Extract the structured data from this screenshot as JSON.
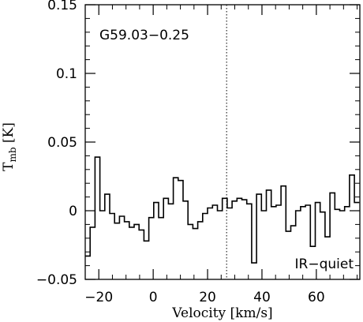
{
  "chart_data": {
    "type": "line",
    "style": "step histogram",
    "title": "",
    "annotations": {
      "source": "G59.03−0.25",
      "classification": "IR−quiet"
    },
    "xlabel": "Velocity [km/s]",
    "ylabel": {
      "main": "T",
      "subscript": "mb",
      "unit": " [K]"
    },
    "xlim": [
      -25,
      76
    ],
    "ylim": [
      -0.05,
      0.15
    ],
    "x_ticks": [
      -20,
      0,
      20,
      40,
      60
    ],
    "x_tick_labels": [
      "−20",
      "0",
      "20",
      "40",
      "60"
    ],
    "y_ticks": [
      -0.05,
      0,
      0.05,
      0.1,
      0.15
    ],
    "y_tick_labels": [
      "−0.05",
      "0",
      "0.05",
      "0.1",
      "0.15"
    ],
    "grid": false,
    "reference_line": {
      "x": 27,
      "style": "dotted"
    },
    "series": [
      {
        "x": [
          -25.0,
          -23.2,
          -21.4,
          -19.6,
          -17.8,
          -16.0,
          -14.2,
          -12.4,
          -10.6,
          -8.8,
          -7.0,
          -5.2,
          -3.4,
          -1.6,
          0.2,
          2.0,
          3.8,
          5.6,
          7.4,
          9.2,
          11.0,
          12.8,
          14.6,
          16.4,
          18.2,
          20.0,
          21.8,
          23.6,
          25.4,
          27.2,
          29.0,
          30.8,
          32.6,
          34.4,
          36.2,
          38.0,
          39.8,
          41.6,
          43.4,
          45.2,
          47.0,
          48.8,
          50.6,
          52.4,
          54.2,
          56.0,
          57.8,
          59.6,
          61.4,
          63.2,
          65.0,
          66.8,
          68.6,
          70.4,
          72.2,
          74.0
        ],
        "y": [
          -0.033,
          -0.012,
          0.039,
          0.0,
          0.012,
          -0.002,
          -0.009,
          -0.004,
          -0.008,
          -0.012,
          -0.01,
          -0.014,
          -0.022,
          -0.005,
          0.006,
          -0.005,
          0.009,
          0.005,
          0.024,
          0.022,
          0.007,
          -0.01,
          -0.013,
          -0.008,
          -0.002,
          0.002,
          0.004,
          0.0,
          0.009,
          0.002,
          0.007,
          0.009,
          0.008,
          0.005,
          -0.038,
          0.012,
          0.0,
          0.015,
          0.003,
          0.004,
          0.018,
          -0.015,
          -0.011,
          0.0,
          0.003,
          0.004,
          -0.026,
          0.006,
          -0.001,
          -0.019,
          0.013,
          0.001,
          0.0,
          0.003,
          0.026,
          0.006
        ]
      }
    ]
  }
}
